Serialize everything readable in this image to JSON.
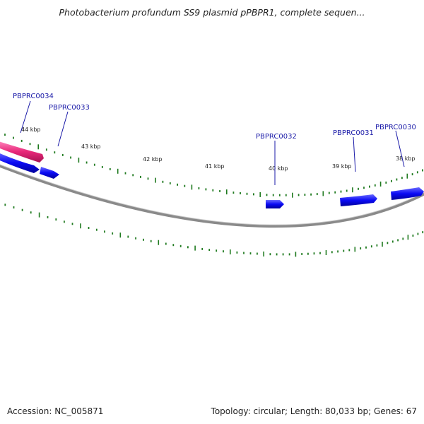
{
  "title": "Photobacterium profundum SS9 plasmid pPBPR1, complete sequen...",
  "footer": {
    "accession": "Accession: NC_005871",
    "summary": "Topology: circular; Length: 80,033 bp; Genes: 67"
  },
  "scale_labels": [
    "44 kbp",
    "43 kbp",
    "42 kbp",
    "41 kbp",
    "40 kbp",
    "39 kbp",
    "38 kbp"
  ],
  "genes": [
    {
      "name": "PBPRC0034",
      "color": "#e8287a"
    },
    {
      "name": "PBPRC0033",
      "color": "#0a0af5"
    },
    {
      "name": "PBPRC0032",
      "color": "#0a0af5"
    },
    {
      "name": "PBPRC0031",
      "color": "#0a0af5"
    },
    {
      "name": "PBPRC0030",
      "color": "#0a0af5"
    }
  ],
  "colors": {
    "backbone": "#8a8a8a",
    "tick": "#1f7a1f",
    "label_line": "#1a1aa8"
  }
}
